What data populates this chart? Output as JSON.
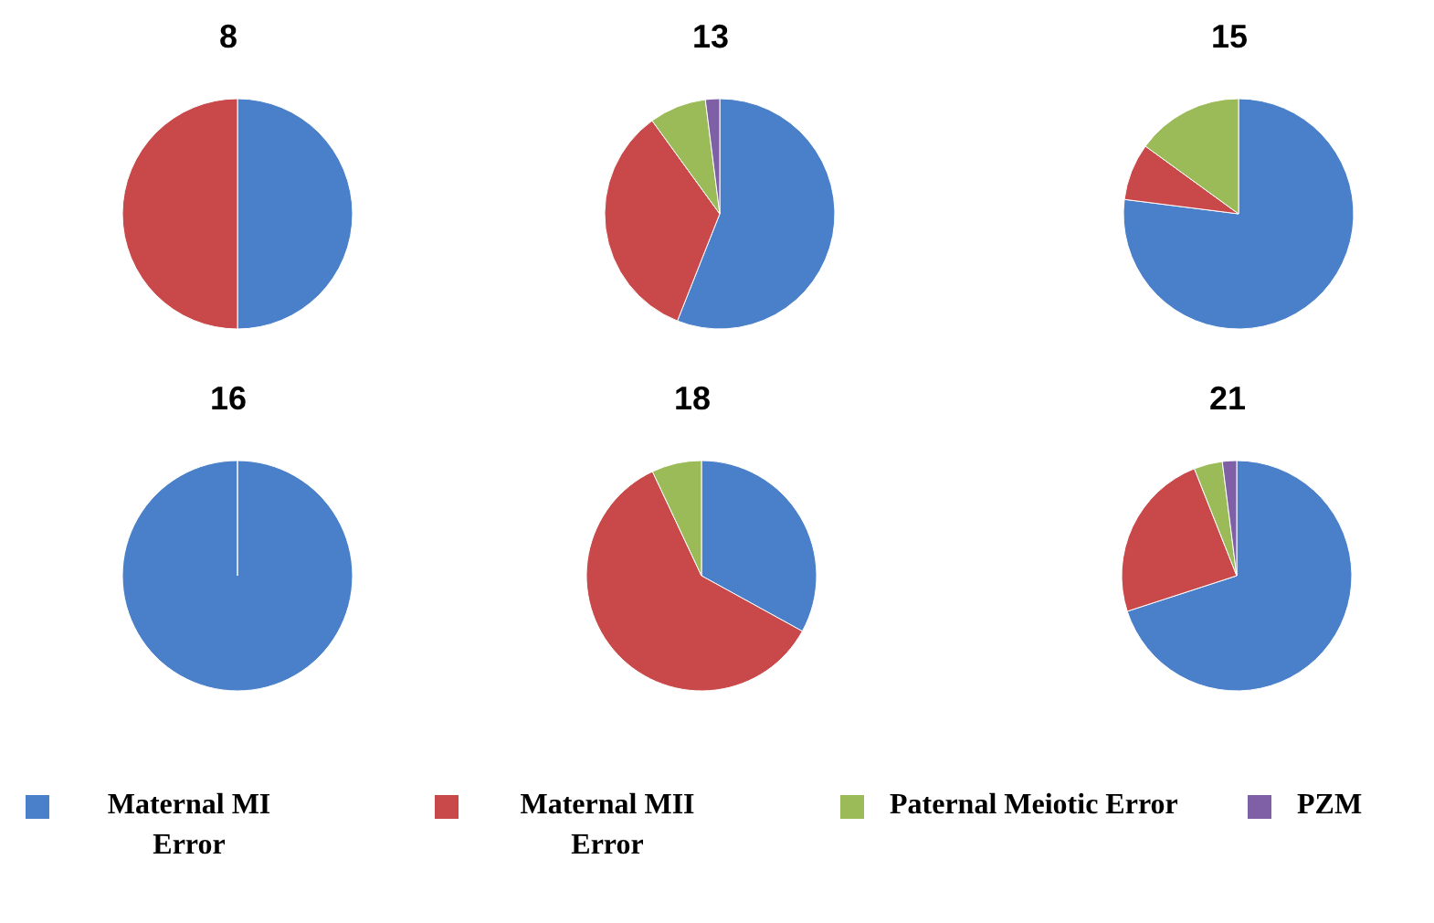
{
  "chart_data": [
    {
      "type": "pie",
      "title": "8",
      "categories": [
        null,
        null
      ],
      "values": [
        50,
        50
      ],
      "colors": [
        "#4a7fc9",
        "#c9484a"
      ]
    },
    {
      "type": "pie",
      "title": "13",
      "categories": [
        null,
        null,
        null,
        null
      ],
      "values": [
        56,
        34,
        8,
        2
      ],
      "colors": [
        "#4a7fc9",
        "#c9484a",
        "#9bbb59",
        "#7f5fa6"
      ]
    },
    {
      "type": "pie",
      "title": "15",
      "categories": [
        null,
        null,
        null
      ],
      "values": [
        77,
        8,
        15
      ],
      "colors": [
        "#4a7fc9",
        "#c9484a",
        "#9bbb59"
      ]
    },
    {
      "type": "pie",
      "title": "16",
      "categories": [
        null
      ],
      "values": [
        100
      ],
      "colors": [
        "#4a7fc9"
      ]
    },
    {
      "type": "pie",
      "title": "18",
      "categories": [
        null,
        null,
        null
      ],
      "values": [
        33,
        60,
        7
      ],
      "colors": [
        "#4a7fc9",
        "#c9484a",
        "#9bbb59"
      ]
    },
    {
      "type": "pie",
      "title": "21",
      "categories": [
        "Maternal MI Error",
        "Maternal MII Error",
        "Paternal Meiotic Error",
        "PZM"
      ],
      "values": [
        70,
        24,
        4,
        2
      ],
      "colors": [
        "#4a7fc9",
        "#c9484a",
        "#9bbb59",
        "#7f5fa6"
      ],
      "legend": "bottom"
    }
  ]
}
